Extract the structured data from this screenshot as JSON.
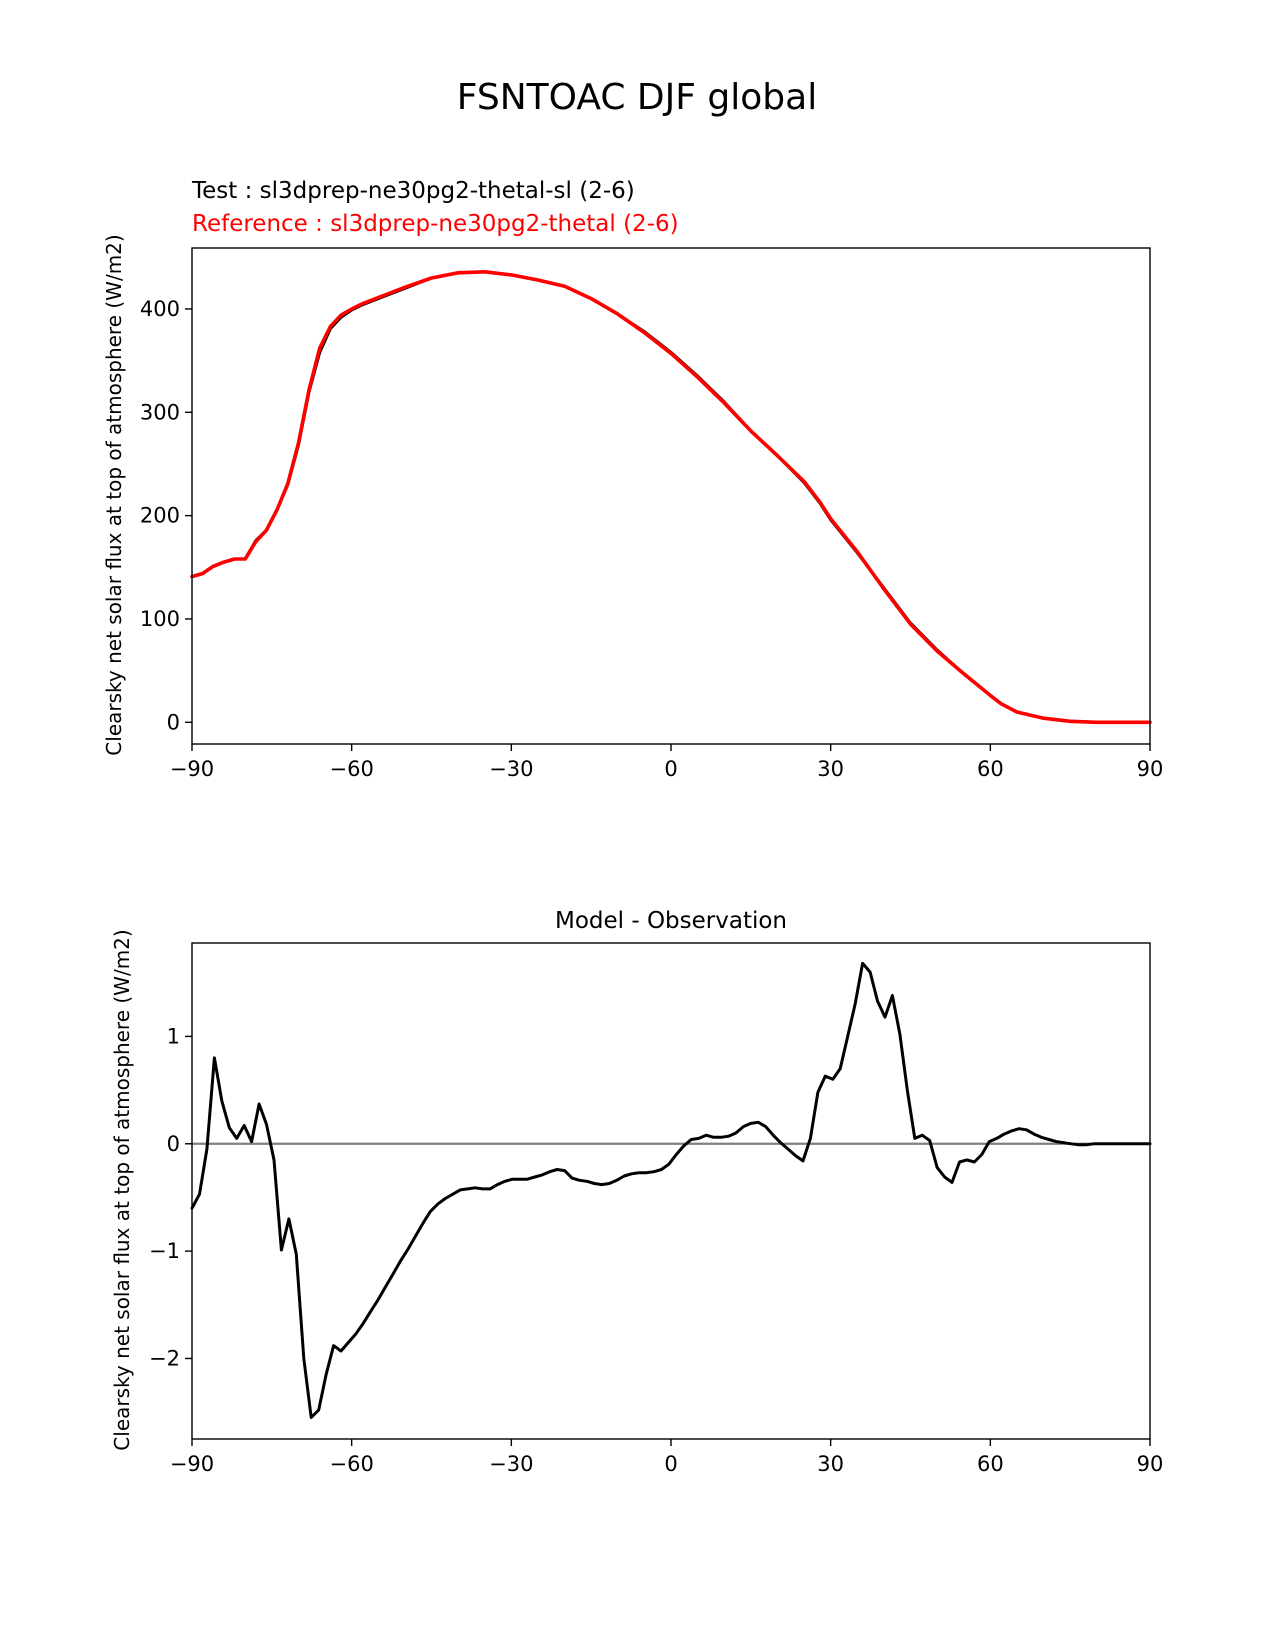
{
  "figure": {
    "suptitle": "FSNTOAC DJF global"
  },
  "chart_data": [
    {
      "type": "line",
      "title": "",
      "test_label": "Test : sl3dprep-ne30pg2-thetal-sl (2-6)",
      "ref_label": "Reference : sl3dprep-ne30pg2-thetal (2-6)",
      "xlabel": "",
      "ylabel": "Clearsky net solar flux at top of atmosphere (W/m2)",
      "xlim": [
        -90,
        90
      ],
      "ylim": [
        -21,
        459
      ],
      "xticks": [
        -90,
        -60,
        -30,
        0,
        30,
        60,
        90
      ],
      "xtick_labels": [
        "−90",
        "−60",
        "−30",
        "0",
        "30",
        "60",
        "90"
      ],
      "yticks": [
        0,
        100,
        200,
        300,
        400
      ],
      "ytick_labels": [
        "0",
        "100",
        "200",
        "300",
        "400"
      ],
      "grid": false,
      "series": [
        {
          "color": "#000000",
          "x": [
            -90,
            -88,
            -86,
            -84,
            -82,
            -80,
            -78,
            -76,
            -74,
            -72,
            -70,
            -68,
            -66,
            -64,
            -62,
            -60,
            -58,
            -55,
            -50,
            -45,
            -40,
            -35,
            -30,
            -25,
            -20,
            -15,
            -10,
            -5,
            0,
            5,
            10,
            15,
            20,
            25,
            28,
            30,
            35,
            40,
            45,
            50,
            55,
            60,
            62,
            65,
            70,
            75,
            80,
            85,
            90
          ],
          "y": [
            141,
            144,
            151,
            155,
            158,
            158,
            176,
            186,
            206,
            230,
            268,
            320,
            358,
            381,
            392,
            399,
            404,
            410,
            420,
            430,
            435,
            436,
            433,
            428,
            422,
            410,
            395,
            378,
            358,
            335,
            310,
            282,
            258,
            232,
            212,
            196,
            164,
            130,
            96,
            70,
            47,
            26,
            18,
            10,
            4,
            1,
            0,
            0,
            0
          ]
        },
        {
          "color": "#ff0000",
          "x": [
            -90,
            -88,
            -86,
            -84,
            -82,
            -80,
            -78,
            -76,
            -74,
            -72,
            -70,
            -68,
            -66,
            -64,
            -62,
            -60,
            -58,
            -55,
            -50,
            -45,
            -40,
            -35,
            -30,
            -25,
            -20,
            -15,
            -10,
            -5,
            0,
            5,
            10,
            15,
            20,
            25,
            28,
            30,
            35,
            40,
            45,
            50,
            55,
            60,
            62,
            65,
            70,
            75,
            80,
            85,
            90
          ],
          "y": [
            141,
            144,
            151,
            155,
            158,
            158,
            175,
            186,
            206,
            231,
            270,
            322,
            362,
            383,
            394,
            400,
            405,
            411,
            421,
            430,
            435,
            436,
            433,
            428,
            422,
            410,
            395,
            377,
            357,
            334,
            309,
            282,
            258,
            233,
            213,
            197,
            165,
            129,
            95,
            69,
            47,
            26,
            18,
            10,
            4,
            1,
            0,
            0,
            0
          ]
        }
      ]
    },
    {
      "type": "line",
      "title": "Model - Observation",
      "xlabel": "",
      "ylabel": "Clearsky net solar flux at top of atmosphere (W/m2)",
      "xlim": [
        -90,
        90
      ],
      "ylim": [
        -2.75,
        1.87
      ],
      "xticks": [
        -90,
        -60,
        -30,
        0,
        30,
        60,
        90
      ],
      "xtick_labels": [
        "−90",
        "−60",
        "−30",
        "0",
        "30",
        "60",
        "90"
      ],
      "yticks": [
        -2,
        -1,
        0,
        1
      ],
      "ytick_labels": [
        "−2",
        "−1",
        "0",
        "1"
      ],
      "grid": false,
      "zero_line_color": "#808080",
      "series": [
        {
          "color": "#000000",
          "x": [
            -90,
            -88.6,
            -87.2,
            -85.8,
            -84.4,
            -83,
            -81.6,
            -80.2,
            -78.8,
            -77.4,
            -76,
            -74.6,
            -73.2,
            -71.8,
            -70.4,
            -69,
            -67.6,
            -66.2,
            -64.8,
            -63.4,
            -62,
            -60.6,
            -59.2,
            -57.8,
            -56.4,
            -55,
            -53.6,
            -52.2,
            -50.8,
            -49.4,
            -48,
            -46.6,
            -45.2,
            -43.8,
            -42.4,
            -41,
            -39.6,
            -38.2,
            -36.8,
            -35.4,
            -34,
            -32.6,
            -31.2,
            -29.8,
            -28.4,
            -27,
            -25.6,
            -24.2,
            -22.8,
            -21.4,
            -20,
            -18.6,
            -17.2,
            -15.8,
            -14.4,
            -13,
            -11.6,
            -10.2,
            -8.8,
            -7.4,
            -6,
            -4.6,
            -3.2,
            -1.8,
            -0.4,
            1,
            2.4,
            3.8,
            5.2,
            6.6,
            8,
            9.4,
            10.8,
            12.2,
            13.6,
            15,
            16.4,
            17.8,
            19.2,
            20.6,
            22,
            23.4,
            24.8,
            26.2,
            27.6,
            29,
            30.4,
            31.8,
            33.2,
            34.6,
            36,
            37.4,
            38.8,
            40.2,
            41.6,
            43,
            44.4,
            45.8,
            47.2,
            48.6,
            50,
            51.4,
            52.8,
            54.2,
            55.6,
            57,
            58.4,
            59.8,
            61.2,
            62.6,
            64,
            65.4,
            66.8,
            68.2,
            69.6,
            71,
            72.4,
            73.8,
            75.2,
            76.6,
            78,
            79.4,
            80.8,
            82.2,
            83.6,
            85,
            86.4,
            87.8,
            89.2,
            90
          ],
          "y": [
            -0.6,
            -0.47,
            -0.05,
            0.8,
            0.4,
            0.15,
            0.05,
            0.17,
            0.02,
            0.37,
            0.18,
            -0.15,
            -0.99,
            -0.7,
            -1.03,
            -2.0,
            -2.55,
            -2.48,
            -2.15,
            -1.88,
            -1.93,
            -1.85,
            -1.77,
            -1.67,
            -1.56,
            -1.45,
            -1.33,
            -1.21,
            -1.09,
            -0.98,
            -0.86,
            -0.74,
            -0.63,
            -0.56,
            -0.51,
            -0.47,
            -0.43,
            -0.42,
            -0.41,
            -0.42,
            -0.42,
            -0.38,
            -0.35,
            -0.33,
            -0.33,
            -0.33,
            -0.31,
            -0.29,
            -0.26,
            -0.24,
            -0.25,
            -0.32,
            -0.34,
            -0.35,
            -0.37,
            -0.38,
            -0.37,
            -0.34,
            -0.3,
            -0.28,
            -0.27,
            -0.27,
            -0.26,
            -0.24,
            -0.19,
            -0.1,
            -0.02,
            0.04,
            0.05,
            0.08,
            0.06,
            0.06,
            0.07,
            0.1,
            0.16,
            0.19,
            0.2,
            0.16,
            0.08,
            0.01,
            -0.05,
            -0.11,
            -0.16,
            0.05,
            0.48,
            0.63,
            0.6,
            0.7,
            1.0,
            1.3,
            1.68,
            1.6,
            1.33,
            1.18,
            1.38,
            1.02,
            0.5,
            0.05,
            0.08,
            0.03,
            -0.22,
            -0.31,
            -0.36,
            -0.17,
            -0.15,
            -0.17,
            -0.1,
            0.02,
            0.05,
            0.09,
            0.12,
            0.14,
            0.13,
            0.09,
            0.06,
            0.04,
            0.02,
            0.01,
            0.0,
            -0.01,
            -0.01,
            0.0,
            0.0,
            0.0,
            0.0,
            0.0,
            0.0,
            0.0,
            0.0,
            0.0
          ]
        }
      ]
    }
  ]
}
